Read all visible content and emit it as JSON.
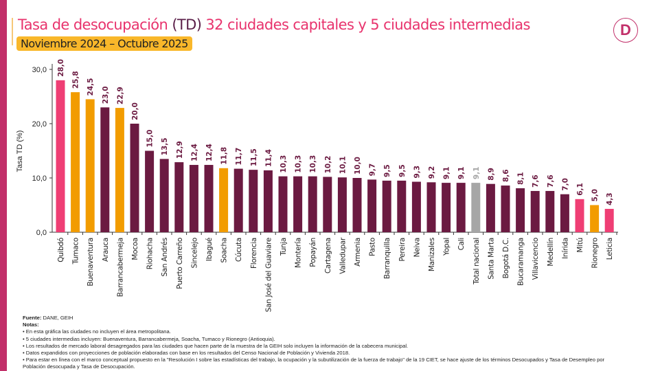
{
  "header": {
    "title_part1": "Tasa de desocupación ",
    "title_td": "(TD)",
    "title_part2": " 32 ciudades capitales y 5 ciudades intermedias",
    "period": "Noviembre 2024 – Octubre 2025",
    "logo": "D"
  },
  "chart_data": {
    "type": "bar",
    "ylabel": "Tasa TD (%)",
    "ylim": [
      0,
      30
    ],
    "yticks": [
      "0,0",
      "10,0",
      "20,0",
      "30,0"
    ],
    "colors": {
      "capital": "#6b1a41",
      "intermedia": "#f29c00",
      "highlight": "#ef3e74",
      "nacional": "#a6a6a6"
    },
    "categories": [
      "Quibdó",
      "Tumaco",
      "Buenaventura",
      "Arauca",
      "Barrancabermeja",
      "Mocoa",
      "Riohacha",
      "San Andrés",
      "Puerto Carreño",
      "Sincelejo",
      "Ibagué",
      "Soacha",
      "Cúcuta",
      "Florencia",
      "San José del Guaviare",
      "Tunja",
      "Montería",
      "Popayán",
      "Cartagena",
      "Valledupar",
      "Armenia",
      "Pasto",
      "Barranquilla",
      "Pereira",
      "Neiva",
      "Manizales",
      "Yopal",
      "Cali",
      "Total nacional",
      "Santa Marta",
      "Bogotá D.C.",
      "Bucaramanga",
      "Villavicencio",
      "Medellín",
      "Inírida",
      "Mitú",
      "Rionegro",
      "Leticia"
    ],
    "values": [
      28.0,
      25.8,
      24.5,
      23.0,
      22.9,
      20.0,
      15.0,
      13.5,
      12.9,
      12.4,
      12.4,
      11.8,
      11.7,
      11.5,
      11.4,
      10.3,
      10.3,
      10.3,
      10.2,
      10.1,
      10.0,
      9.7,
      9.5,
      9.5,
      9.3,
      9.2,
      9.1,
      9.1,
      9.1,
      8.9,
      8.6,
      8.1,
      7.6,
      7.6,
      7.0,
      6.1,
      5.0,
      4.3
    ],
    "labels": [
      "28,0",
      "25,8",
      "24,5",
      "23,0",
      "22,9",
      "20,0",
      "15,0",
      "13,5",
      "12,9",
      "12,4",
      "12,4",
      "11,8",
      "11,7",
      "11,5",
      "11,4",
      "10,3",
      "10,3",
      "10,3",
      "10,2",
      "10,1",
      "10,0",
      "9,7",
      "9,5",
      "9,5",
      "9,3",
      "9,2",
      "9,1",
      "9,1",
      "9,1",
      "8,9",
      "8,6",
      "8,1",
      "7,6",
      "7,6",
      "7,0",
      "6,1",
      "5,0",
      "4,3"
    ],
    "groups": [
      "highlight",
      "intermedia",
      "intermedia",
      "capital",
      "intermedia",
      "capital",
      "capital",
      "capital",
      "capital",
      "capital",
      "capital",
      "intermedia",
      "capital",
      "capital",
      "capital",
      "capital",
      "capital",
      "capital",
      "capital",
      "capital",
      "capital",
      "capital",
      "capital",
      "capital",
      "capital",
      "capital",
      "capital",
      "capital",
      "nacional",
      "capital",
      "capital",
      "capital",
      "capital",
      "capital",
      "capital",
      "highlight",
      "intermedia",
      "highlight"
    ]
  },
  "notes": {
    "source_label": "Fuente:",
    "source": " DANE, GEIH",
    "notes_label": "Notas:",
    "items": [
      "• En esta gráfica las ciudades no incluyen el área metropolitana.",
      "• 5 ciudades intermedias incluyen: Buenaventura, Barrancabermeja, Soacha, Tumaco y Rionegro (Antioquia).",
      "• Los resultados de mercado laboral desagregados para las ciudades que hacen parte de la muestra de la GEIH solo incluyen la información de la cabecera municipal.",
      "• Datos expandidos con proyecciones de población elaboradas con base en los resultados del Censo Nacional de Población y Vivienda 2018.",
      "• Para estar en línea con el marco conceptual propuesto en la \"Resolución I sobre las estadísticas del trabajo, la ocupación y la subutilización de la fuerza de trabajo\" de la 19 CIET, se hace ajuste de los términos Desocupados y Tasa de Desempleo por Población desocupada y Tasa de Desocupación."
    ]
  }
}
